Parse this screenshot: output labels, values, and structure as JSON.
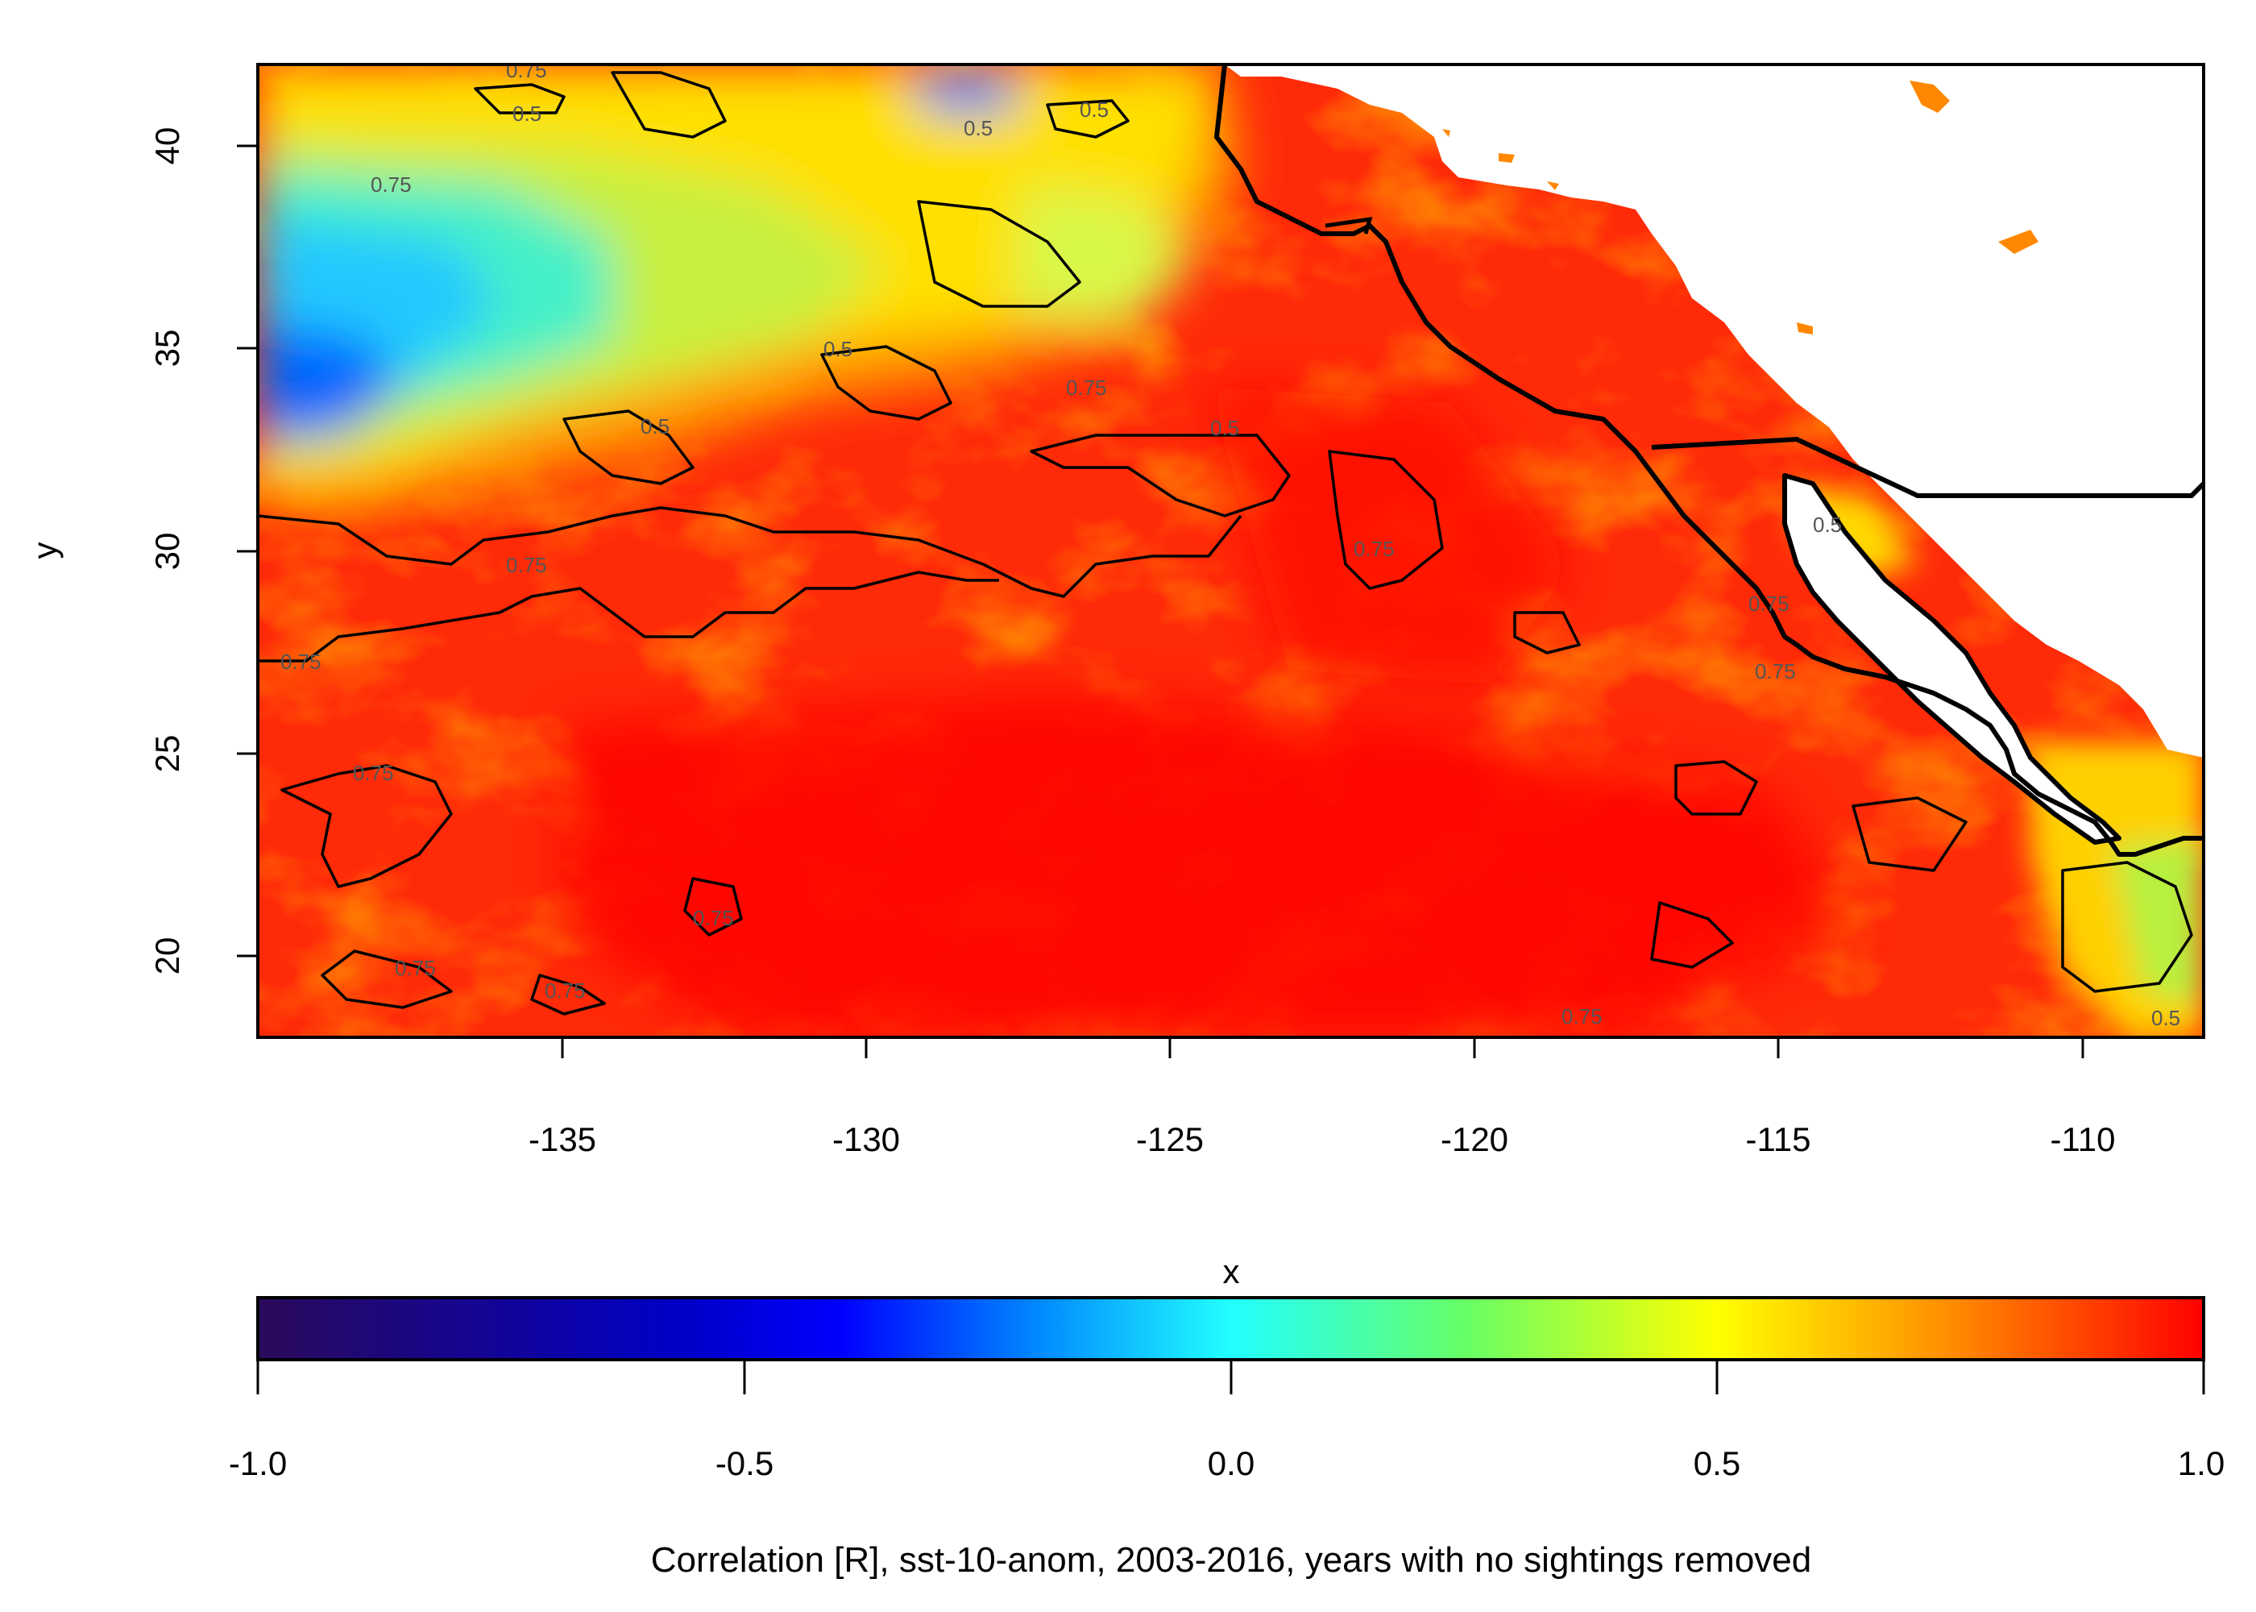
{
  "map": {
    "xlabel": "x",
    "ylabel": "y",
    "x_ticks": [
      "-135",
      "-130",
      "-125",
      "-120",
      "-115",
      "-110"
    ],
    "y_ticks": [
      "20",
      "25",
      "30",
      "35",
      "40"
    ],
    "xlim": [
      -140,
      -108
    ],
    "ylim": [
      18,
      42
    ],
    "contour_levels": [
      "0.5",
      "0.75"
    ],
    "land_color": "#ffffff",
    "coastline_color": "#000000"
  },
  "colorbar": {
    "ticks": [
      "-1.0",
      "-0.5",
      "0.0",
      "0.5",
      "1.0"
    ],
    "range": [
      -1.0,
      1.0
    ],
    "palette": [
      "#2a0a5a",
      "#0000c8",
      "#0044ff",
      "#22ffff",
      "#ffff00",
      "#ff8c00",
      "#ff0000"
    ],
    "caption": "Correlation [R], sst-10-anom, 2003-2016, years with no sightings removed"
  }
}
